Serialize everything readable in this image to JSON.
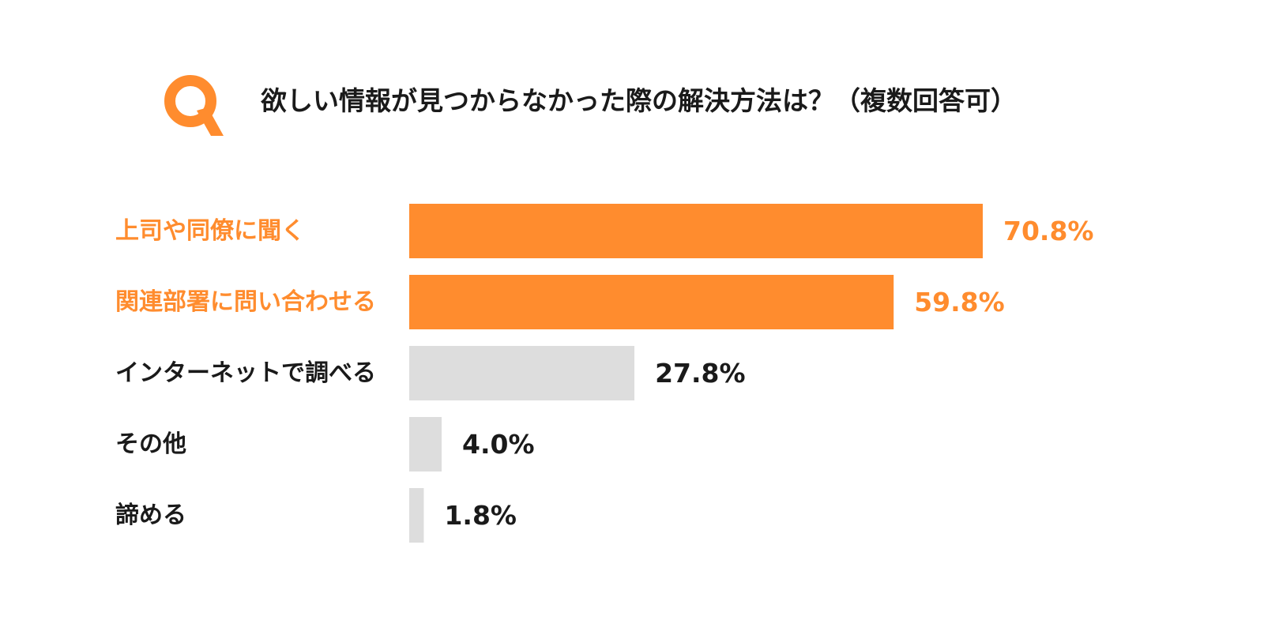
{
  "header": {
    "q_letter": "Q",
    "question": "欲しい情報が見つからなかった際の解決方法は？（複数回答可）"
  },
  "colors": {
    "accent": "#FF8C2E",
    "muted_bar": "#DDDDDD",
    "text_dark": "#1a1a1a"
  },
  "chart_data": {
    "type": "bar",
    "orientation": "horizontal",
    "title": "欲しい情報が見つからなかった際の解決方法は？（複数回答可）",
    "categories": [
      "上司や同僚に聞く",
      "関連部署に問い合わせる",
      "インターネットで調べる",
      "その他",
      "諦める"
    ],
    "values": [
      70.8,
      59.8,
      27.8,
      4.0,
      1.8
    ],
    "value_labels": [
      "70.8%",
      "59.8%",
      "27.8%",
      "4.0%",
      "1.8%"
    ],
    "highlighted": [
      true,
      true,
      false,
      false,
      false
    ],
    "unit": "%",
    "xlim": [
      0,
      70.8
    ],
    "grid": false,
    "legend": "none"
  }
}
